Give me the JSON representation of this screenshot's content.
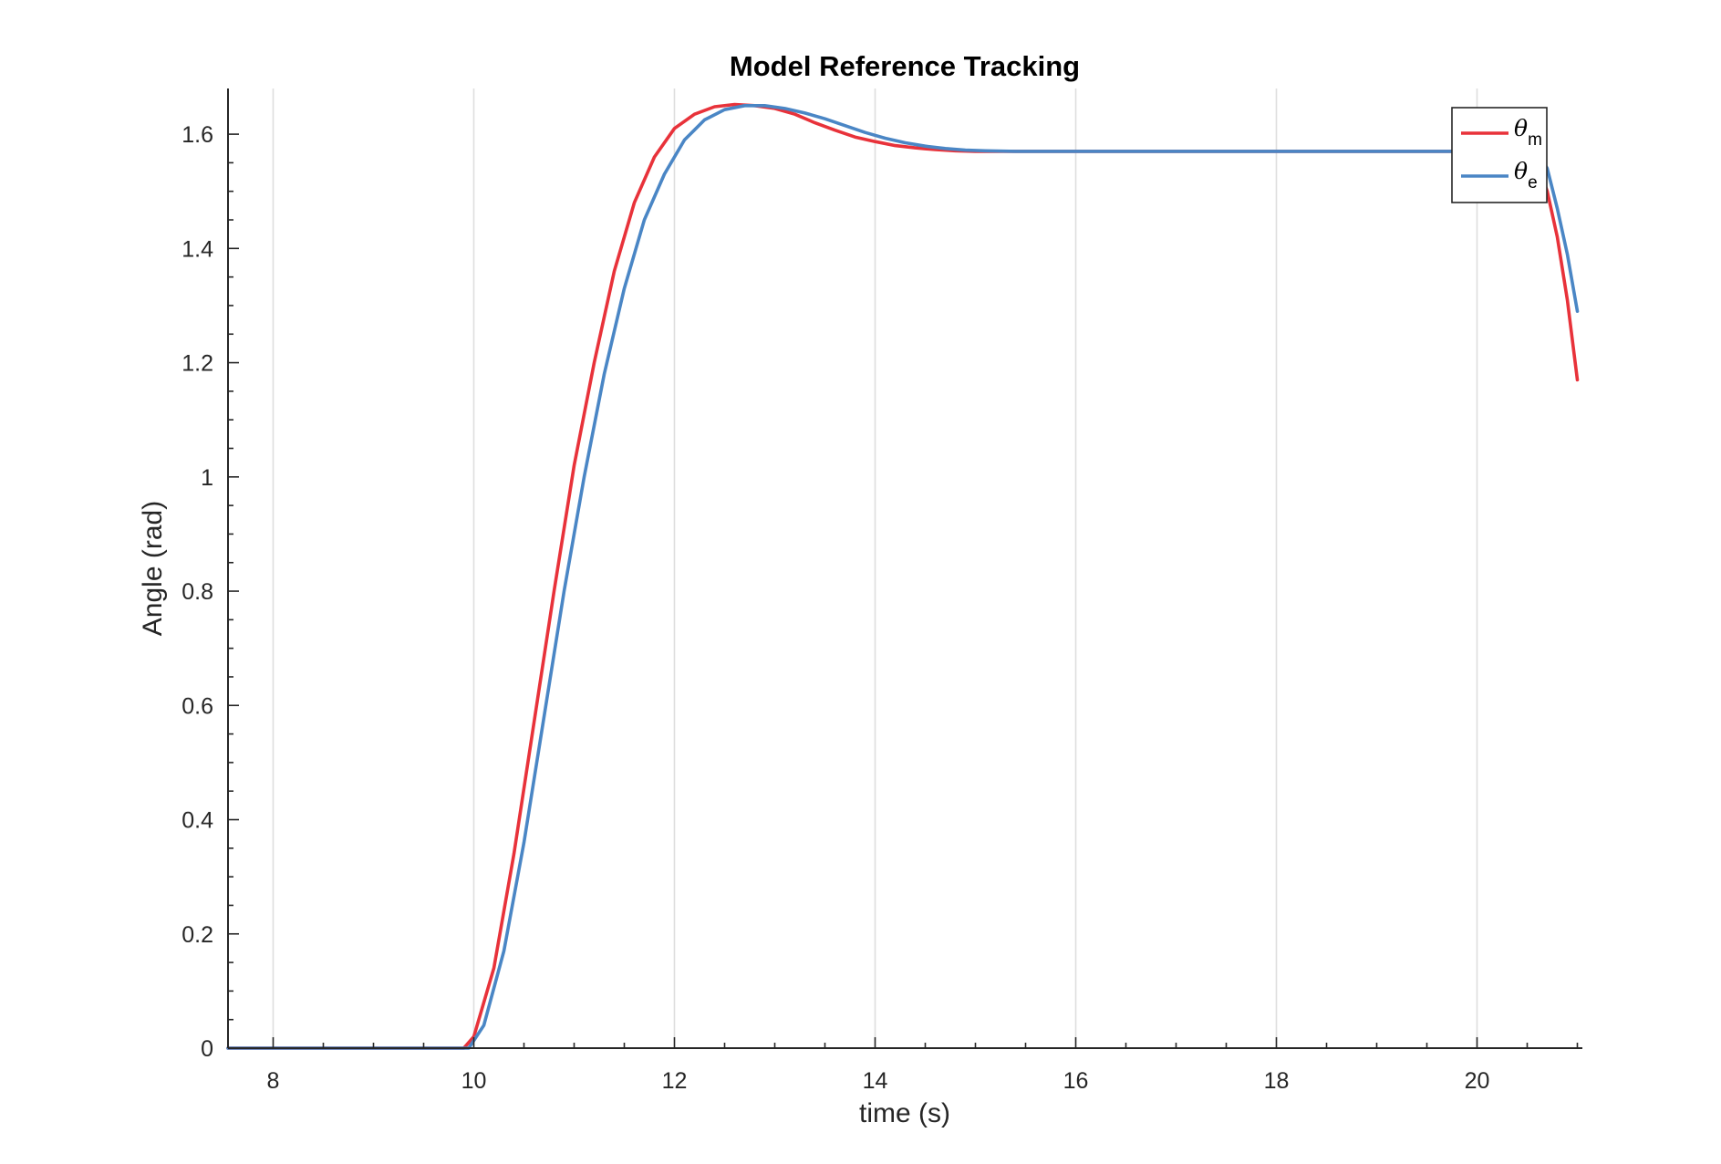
{
  "chart_data": {
    "type": "line",
    "title": "Model Reference Tracking",
    "xlabel": "time (s)",
    "ylabel": "Angle (rad)",
    "xlim": [
      7.55,
      21.05
    ],
    "ylim": [
      0,
      1.68
    ],
    "xticks": [
      8,
      10,
      12,
      14,
      16,
      18,
      20
    ],
    "yticks": [
      0,
      0.2,
      0.4,
      0.6,
      0.8,
      1,
      1.2,
      1.4,
      1.6
    ],
    "xtick_labels": [
      "8",
      "10",
      "12",
      "14",
      "16",
      "18",
      "20"
    ],
    "ytick_labels": [
      "0",
      "0.2",
      "0.4",
      "0.6",
      "0.8",
      "1",
      "1.2",
      "1.4",
      "1.6"
    ],
    "grid": "vertical",
    "legend_position": "top-right",
    "series": [
      {
        "name": "θm",
        "symbol": "θ",
        "subscript": "m",
        "color": "#e8323a",
        "x": [
          7.55,
          9.9,
          10.0,
          10.2,
          10.4,
          10.6,
          10.8,
          11.0,
          11.2,
          11.4,
          11.6,
          11.8,
          12.0,
          12.2,
          12.4,
          12.6,
          12.8,
          13.0,
          13.2,
          13.4,
          13.6,
          13.8,
          14.0,
          14.2,
          14.4,
          14.6,
          14.8,
          15.0,
          15.2,
          15.5,
          16.0,
          17.0,
          18.0,
          19.0,
          20.0,
          20.5,
          20.6,
          20.7,
          20.8,
          20.9,
          21.0
        ],
        "y": [
          0,
          0,
          0.02,
          0.14,
          0.34,
          0.57,
          0.8,
          1.02,
          1.2,
          1.36,
          1.48,
          1.56,
          1.61,
          1.635,
          1.648,
          1.652,
          1.65,
          1.645,
          1.635,
          1.62,
          1.607,
          1.595,
          1.587,
          1.58,
          1.576,
          1.573,
          1.571,
          1.57,
          1.57,
          1.57,
          1.57,
          1.57,
          1.57,
          1.57,
          1.57,
          1.57,
          1.55,
          1.5,
          1.42,
          1.31,
          1.17
        ]
      },
      {
        "name": "θe",
        "symbol": "θ",
        "subscript": "e",
        "color": "#4a86c5",
        "x": [
          7.55,
          9.95,
          10.1,
          10.3,
          10.5,
          10.7,
          10.9,
          11.1,
          11.3,
          11.5,
          11.7,
          11.9,
          12.1,
          12.3,
          12.5,
          12.7,
          12.9,
          13.1,
          13.3,
          13.5,
          13.7,
          13.9,
          14.1,
          14.3,
          14.5,
          14.7,
          14.9,
          15.1,
          15.4,
          15.8,
          16.5,
          17.5,
          18.5,
          19.5,
          20.3,
          20.6,
          20.7,
          20.8,
          20.9,
          21.0
        ],
        "y": [
          0,
          0,
          0.04,
          0.17,
          0.36,
          0.58,
          0.8,
          1.0,
          1.18,
          1.33,
          1.45,
          1.53,
          1.59,
          1.625,
          1.643,
          1.65,
          1.65,
          1.645,
          1.637,
          1.627,
          1.615,
          1.603,
          1.593,
          1.585,
          1.579,
          1.575,
          1.572,
          1.571,
          1.57,
          1.57,
          1.57,
          1.57,
          1.57,
          1.57,
          1.57,
          1.57,
          1.54,
          1.47,
          1.39,
          1.29
        ]
      }
    ]
  }
}
